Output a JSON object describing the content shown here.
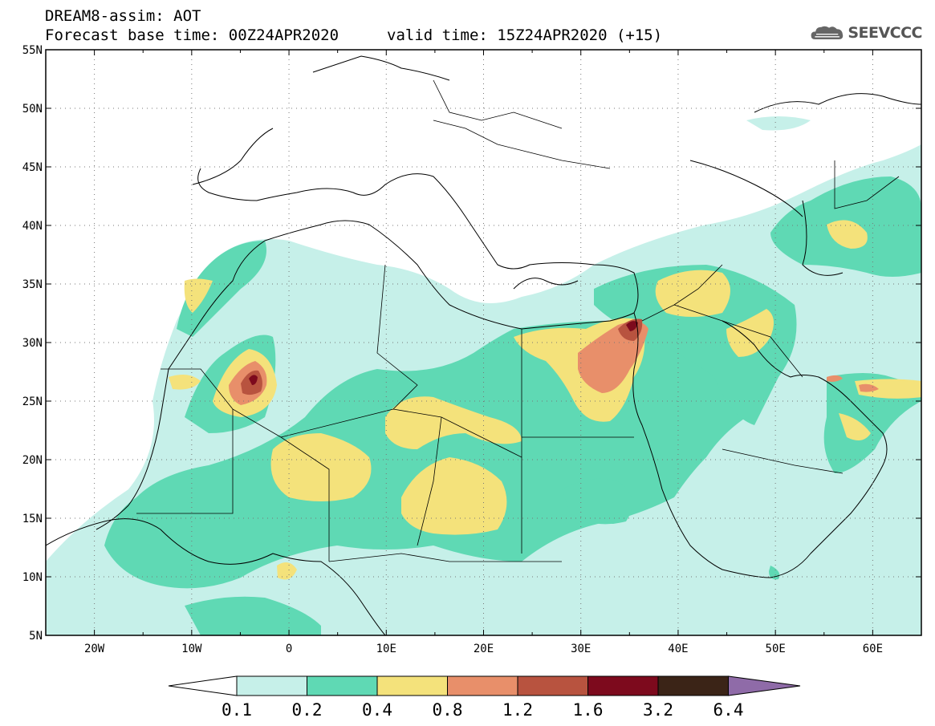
{
  "header": {
    "title_line1": "DREAM8-assim: AOT",
    "forecast_base": "Forecast base time: 00Z24APR2020",
    "valid_time": "valid time: 15Z24APR2020 (+15)"
  },
  "logo": {
    "text": "SEEVCCC",
    "icon": "cloud-icon"
  },
  "map": {
    "lon_labels": [
      "20W",
      "10W",
      "0",
      "10E",
      "20E",
      "30E",
      "40E",
      "50E",
      "60E"
    ],
    "lat_labels": [
      "55N",
      "50N",
      "45N",
      "40N",
      "35N",
      "30N",
      "25N",
      "20N",
      "15N",
      "10N",
      "5N"
    ],
    "lon_range": [
      -25,
      65
    ],
    "lat_range": [
      5,
      55
    ],
    "grid": true
  },
  "legend": {
    "labels": [
      "0.1",
      "0.2",
      "0.4",
      "0.8",
      "1.2",
      "1.6",
      "3.2",
      "6.4"
    ],
    "colors": [
      "#ffffff",
      "#c6f0e9",
      "#5fd9b4",
      "#f4e27b",
      "#e88f6a",
      "#b8533f",
      "#7d0a1d",
      "#3b2417",
      "#8f6ba8"
    ]
  }
}
